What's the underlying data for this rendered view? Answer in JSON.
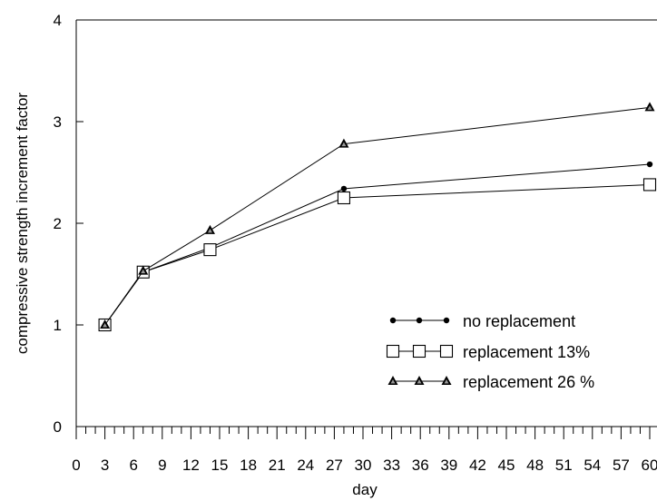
{
  "chart_data": {
    "type": "line",
    "title": "",
    "xlabel": "day",
    "ylabel": "compressive strength increment factor",
    "xlim": [
      0,
      60
    ],
    "ylim": [
      0,
      4
    ],
    "x_ticks": [
      "0",
      "3",
      "6",
      "9",
      "12",
      "15",
      "18",
      "21",
      "24",
      "27",
      "30",
      "33",
      "36",
      "39",
      "42",
      "45",
      "48",
      "51",
      "54",
      "57",
      "60"
    ],
    "y_ticks": [
      "0",
      "1",
      "2",
      "3",
      "4"
    ],
    "grid": false,
    "legend_position": "bottom-right",
    "series": [
      {
        "name": "no replacement",
        "marker": "dot",
        "points": [
          [
            3,
            1.0
          ],
          [
            7,
            1.52
          ],
          [
            14,
            1.76
          ],
          [
            28,
            2.34
          ],
          [
            60,
            2.58
          ]
        ]
      },
      {
        "name": "replacement 13%",
        "marker": "square",
        "points": [
          [
            3,
            1.0
          ],
          [
            7,
            1.52
          ],
          [
            14,
            1.74
          ],
          [
            28,
            2.25
          ],
          [
            60,
            2.38
          ]
        ]
      },
      {
        "name": "replacement 26 %",
        "marker": "triangle",
        "points": [
          [
            3,
            1.0
          ],
          [
            7,
            1.53
          ],
          [
            14,
            1.93
          ],
          [
            28,
            2.78
          ],
          [
            60,
            3.14
          ]
        ]
      }
    ]
  }
}
